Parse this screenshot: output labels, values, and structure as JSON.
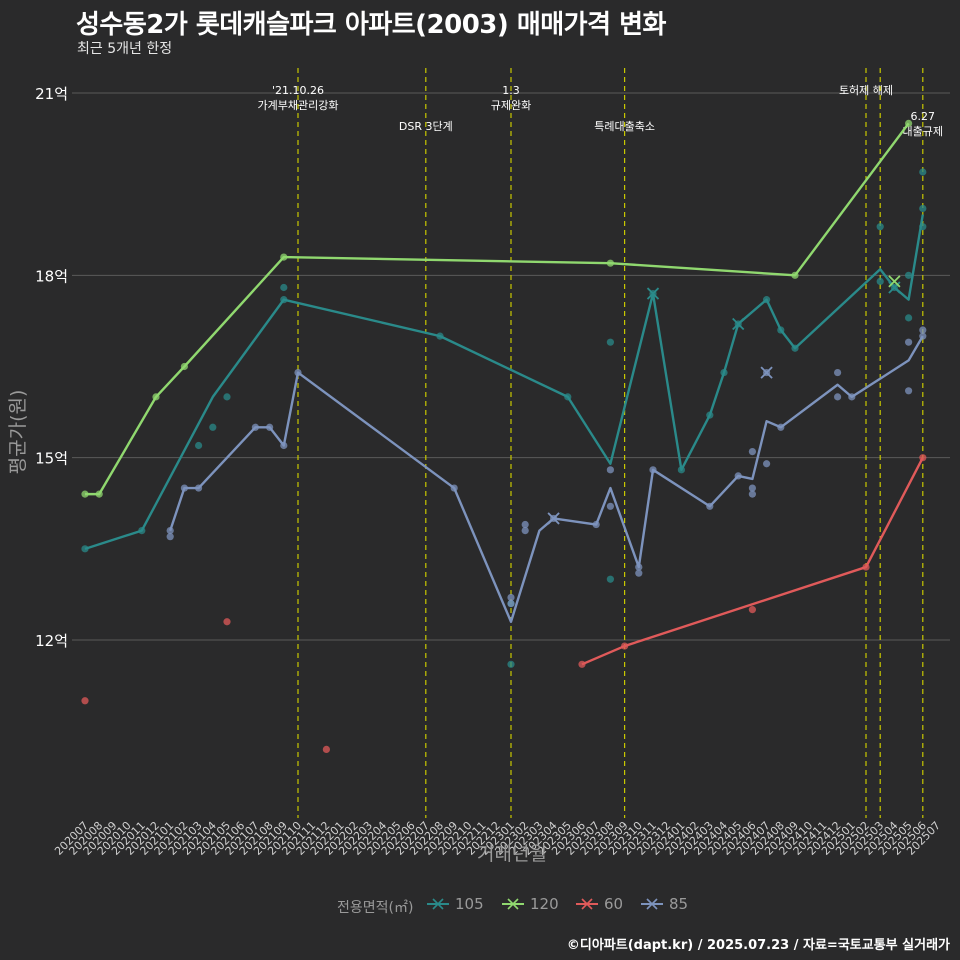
{
  "title": "성수동2가 롯데캐슬파크 아파트(2003) 매매가격 변화",
  "subtitle": "최근 5개년 한정",
  "caption": "©디아파트(dapt.kr) / 2025.07.23 / 자료=국토교통부 실거래가",
  "legend": {
    "title": "전용면적(㎡)",
    "items": [
      {
        "label": "105",
        "color": "#2a8a8a"
      },
      {
        "label": "120",
        "color": "#90d86f"
      },
      {
        "label": "60",
        "color": "#e05a5a"
      },
      {
        "label": "85",
        "color": "#7d93bd"
      }
    ]
  },
  "chart_data": {
    "type": "line",
    "title": "성수동2가 롯데캐슬파크 아파트(2003) 매매가격 변화",
    "subtitle": "최근 5개년 한정",
    "xlabel": "거래년월",
    "ylabel": "평균가(원)",
    "categories": [
      "202007",
      "202008",
      "202009",
      "202010",
      "202011",
      "202012",
      "202101",
      "202102",
      "202103",
      "202104",
      "202105",
      "202106",
      "202107",
      "202108",
      "202109",
      "202110",
      "202111",
      "202112",
      "202201",
      "202202",
      "202203",
      "202204",
      "202205",
      "202206",
      "202207",
      "202208",
      "202209",
      "202210",
      "202211",
      "202212",
      "202301",
      "202302",
      "202303",
      "202304",
      "202305",
      "202306",
      "202307",
      "202308",
      "202309",
      "202310",
      "202311",
      "202312",
      "202401",
      "202402",
      "202403",
      "202404",
      "202405",
      "202406",
      "202407",
      "202408",
      "202409",
      "202410",
      "202411",
      "202412",
      "202501",
      "202502",
      "202503",
      "202504",
      "202505",
      "202506",
      "202507"
    ],
    "yticks": [
      {
        "value": 12,
        "label": "12억"
      },
      {
        "value": 15,
        "label": "15억"
      },
      {
        "value": 18,
        "label": "18억"
      },
      {
        "value": 21,
        "label": "21억"
      }
    ],
    "ylim": [
      9.5,
      21.8
    ],
    "grid": true,
    "legend_position": "bottom",
    "series": [
      {
        "name": "105",
        "color": "#2a8a8a",
        "line": [
          [
            "202007",
            13.5
          ],
          [
            "202011",
            13.8
          ],
          [
            "202104",
            16.0
          ],
          [
            "202109",
            17.6
          ],
          [
            "202208",
            17.0
          ],
          [
            "202305",
            16.0
          ],
          [
            "202308",
            14.9
          ],
          [
            "202311",
            17.7
          ],
          [
            "202401",
            14.8
          ],
          [
            "202403",
            15.7
          ],
          [
            "202404",
            16.4
          ],
          [
            "202405",
            17.2
          ],
          [
            "202407",
            17.6
          ],
          [
            "202408",
            17.1
          ],
          [
            "202409",
            16.8
          ],
          [
            "202503",
            18.1
          ],
          [
            "202504",
            17.8
          ],
          [
            "202505",
            17.6
          ],
          [
            "202506",
            19.0
          ]
        ],
        "points": [
          [
            "202007",
            13.5
          ],
          [
            "202011",
            13.8
          ],
          [
            "202103",
            15.2
          ],
          [
            "202104",
            15.5
          ],
          [
            "202105",
            16.0
          ],
          [
            "202109",
            17.8
          ],
          [
            "202109",
            17.6
          ],
          [
            "202208",
            17.0
          ],
          [
            "202301",
            11.6
          ],
          [
            "202301",
            12.6
          ],
          [
            "202305",
            16.0
          ],
          [
            "202308",
            16.9
          ],
          [
            "202308",
            13.0
          ],
          [
            "202311",
            17.7
          ],
          [
            "202401",
            14.8
          ],
          [
            "202403",
            15.7
          ],
          [
            "202404",
            16.4
          ],
          [
            "202405",
            17.2
          ],
          [
            "202407",
            17.6
          ],
          [
            "202408",
            17.1
          ],
          [
            "202409",
            16.8
          ],
          [
            "202503",
            18.8
          ],
          [
            "202503",
            17.9
          ],
          [
            "202504",
            17.8
          ],
          [
            "202505",
            17.3
          ],
          [
            "202505",
            18.0
          ],
          [
            "202506",
            19.7
          ],
          [
            "202506",
            19.1
          ],
          [
            "202506",
            18.8
          ]
        ],
        "cross": [
          [
            "202311",
            17.7
          ],
          [
            "202405",
            17.2
          ],
          [
            "202504",
            17.8
          ]
        ]
      },
      {
        "name": "120",
        "color": "#90d86f",
        "line": [
          [
            "202007",
            14.4
          ],
          [
            "202008",
            14.4
          ],
          [
            "202012",
            16.0
          ],
          [
            "202102",
            16.5
          ],
          [
            "202109",
            18.3
          ],
          [
            "202308",
            18.2
          ],
          [
            "202409",
            18.0
          ],
          [
            "202505",
            20.5
          ]
        ],
        "points": [
          [
            "202007",
            14.4
          ],
          [
            "202008",
            14.4
          ],
          [
            "202012",
            16.0
          ],
          [
            "202102",
            16.5
          ],
          [
            "202109",
            18.3
          ],
          [
            "202308",
            18.2
          ],
          [
            "202409",
            18.0
          ],
          [
            "202505",
            20.5
          ]
        ],
        "cross": [
          [
            "202504",
            17.9
          ]
        ]
      },
      {
        "name": "60",
        "color": "#e05a5a",
        "line": [
          [
            "202306",
            11.6
          ],
          [
            "202309",
            11.9
          ],
          [
            "202502",
            13.2
          ],
          [
            "202506",
            15.0
          ]
        ],
        "points": [
          [
            "202007",
            11.0
          ],
          [
            "202105",
            12.3
          ],
          [
            "202112",
            10.2
          ],
          [
            "202306",
            11.6
          ],
          [
            "202309",
            11.9
          ],
          [
            "202406",
            12.5
          ],
          [
            "202502",
            13.2
          ],
          [
            "202506",
            15.0
          ]
        ],
        "cross": []
      },
      {
        "name": "85",
        "color": "#7d93bd",
        "line": [
          [
            "202101",
            13.8
          ],
          [
            "202102",
            14.5
          ],
          [
            "202103",
            14.5
          ],
          [
            "202107",
            15.5
          ],
          [
            "202108",
            15.5
          ],
          [
            "202109",
            15.2
          ],
          [
            "202110",
            16.4
          ],
          [
            "202209",
            14.5
          ],
          [
            "202301",
            12.3
          ],
          [
            "202303",
            13.8
          ],
          [
            "202304",
            14.0
          ],
          [
            "202307",
            13.9
          ],
          [
            "202308",
            14.5
          ],
          [
            "202310",
            13.2
          ],
          [
            "202311",
            14.8
          ],
          [
            "202403",
            14.2
          ],
          [
            "202405",
            14.7
          ],
          [
            "202406",
            14.65
          ],
          [
            "202407",
            15.6
          ],
          [
            "202408",
            15.5
          ],
          [
            "202412",
            16.2
          ],
          [
            "202501",
            16.0
          ],
          [
            "202505",
            16.6
          ],
          [
            "202506",
            17.0
          ]
        ],
        "points": [
          [
            "202101",
            13.7
          ],
          [
            "202101",
            13.8
          ],
          [
            "202102",
            14.5
          ],
          [
            "202103",
            14.5
          ],
          [
            "202107",
            15.5
          ],
          [
            "202108",
            15.5
          ],
          [
            "202109",
            15.2
          ],
          [
            "202110",
            16.4
          ],
          [
            "202209",
            14.5
          ],
          [
            "202301",
            12.6
          ],
          [
            "202301",
            12.7
          ],
          [
            "202302",
            13.8
          ],
          [
            "202302",
            13.9
          ],
          [
            "202304",
            14.0
          ],
          [
            "202307",
            13.9
          ],
          [
            "202308",
            14.8
          ],
          [
            "202308",
            14.2
          ],
          [
            "202310",
            13.2
          ],
          [
            "202310",
            13.1
          ],
          [
            "202311",
            14.8
          ],
          [
            "202403",
            14.2
          ],
          [
            "202405",
            14.7
          ],
          [
            "202406",
            15.1
          ],
          [
            "202406",
            14.5
          ],
          [
            "202406",
            14.4
          ],
          [
            "202407",
            14.9
          ],
          [
            "202407",
            16.4
          ],
          [
            "202408",
            15.5
          ],
          [
            "202412",
            16.4
          ],
          [
            "202412",
            16.0
          ],
          [
            "202501",
            16.0
          ],
          [
            "202505",
            16.1
          ],
          [
            "202505",
            16.9
          ],
          [
            "202506",
            17.0
          ],
          [
            "202506",
            17.1
          ]
        ],
        "cross": [
          [
            "202304",
            14.0
          ],
          [
            "202407",
            16.4
          ]
        ]
      }
    ],
    "annotations": [
      {
        "x": "202110",
        "lines": [
          "'21.10.26",
          "가계부채관리강화"
        ],
        "level": "top"
      },
      {
        "x": "202207",
        "lines": [
          "DSR 3단계"
        ],
        "level": "mid"
      },
      {
        "x": "202301",
        "lines": [
          "1.3",
          "규제완화"
        ],
        "level": "top"
      },
      {
        "x": "202309",
        "lines": [
          "특례대출축소"
        ],
        "level": "mid"
      },
      {
        "x": "202502",
        "lines": [
          "토허제 해제"
        ],
        "level": "top"
      },
      {
        "x": "202503",
        "lines": [],
        "level": "none"
      },
      {
        "x": "202506",
        "lines": [
          "6.27",
          "대출규제"
        ],
        "level": "low"
      }
    ]
  }
}
